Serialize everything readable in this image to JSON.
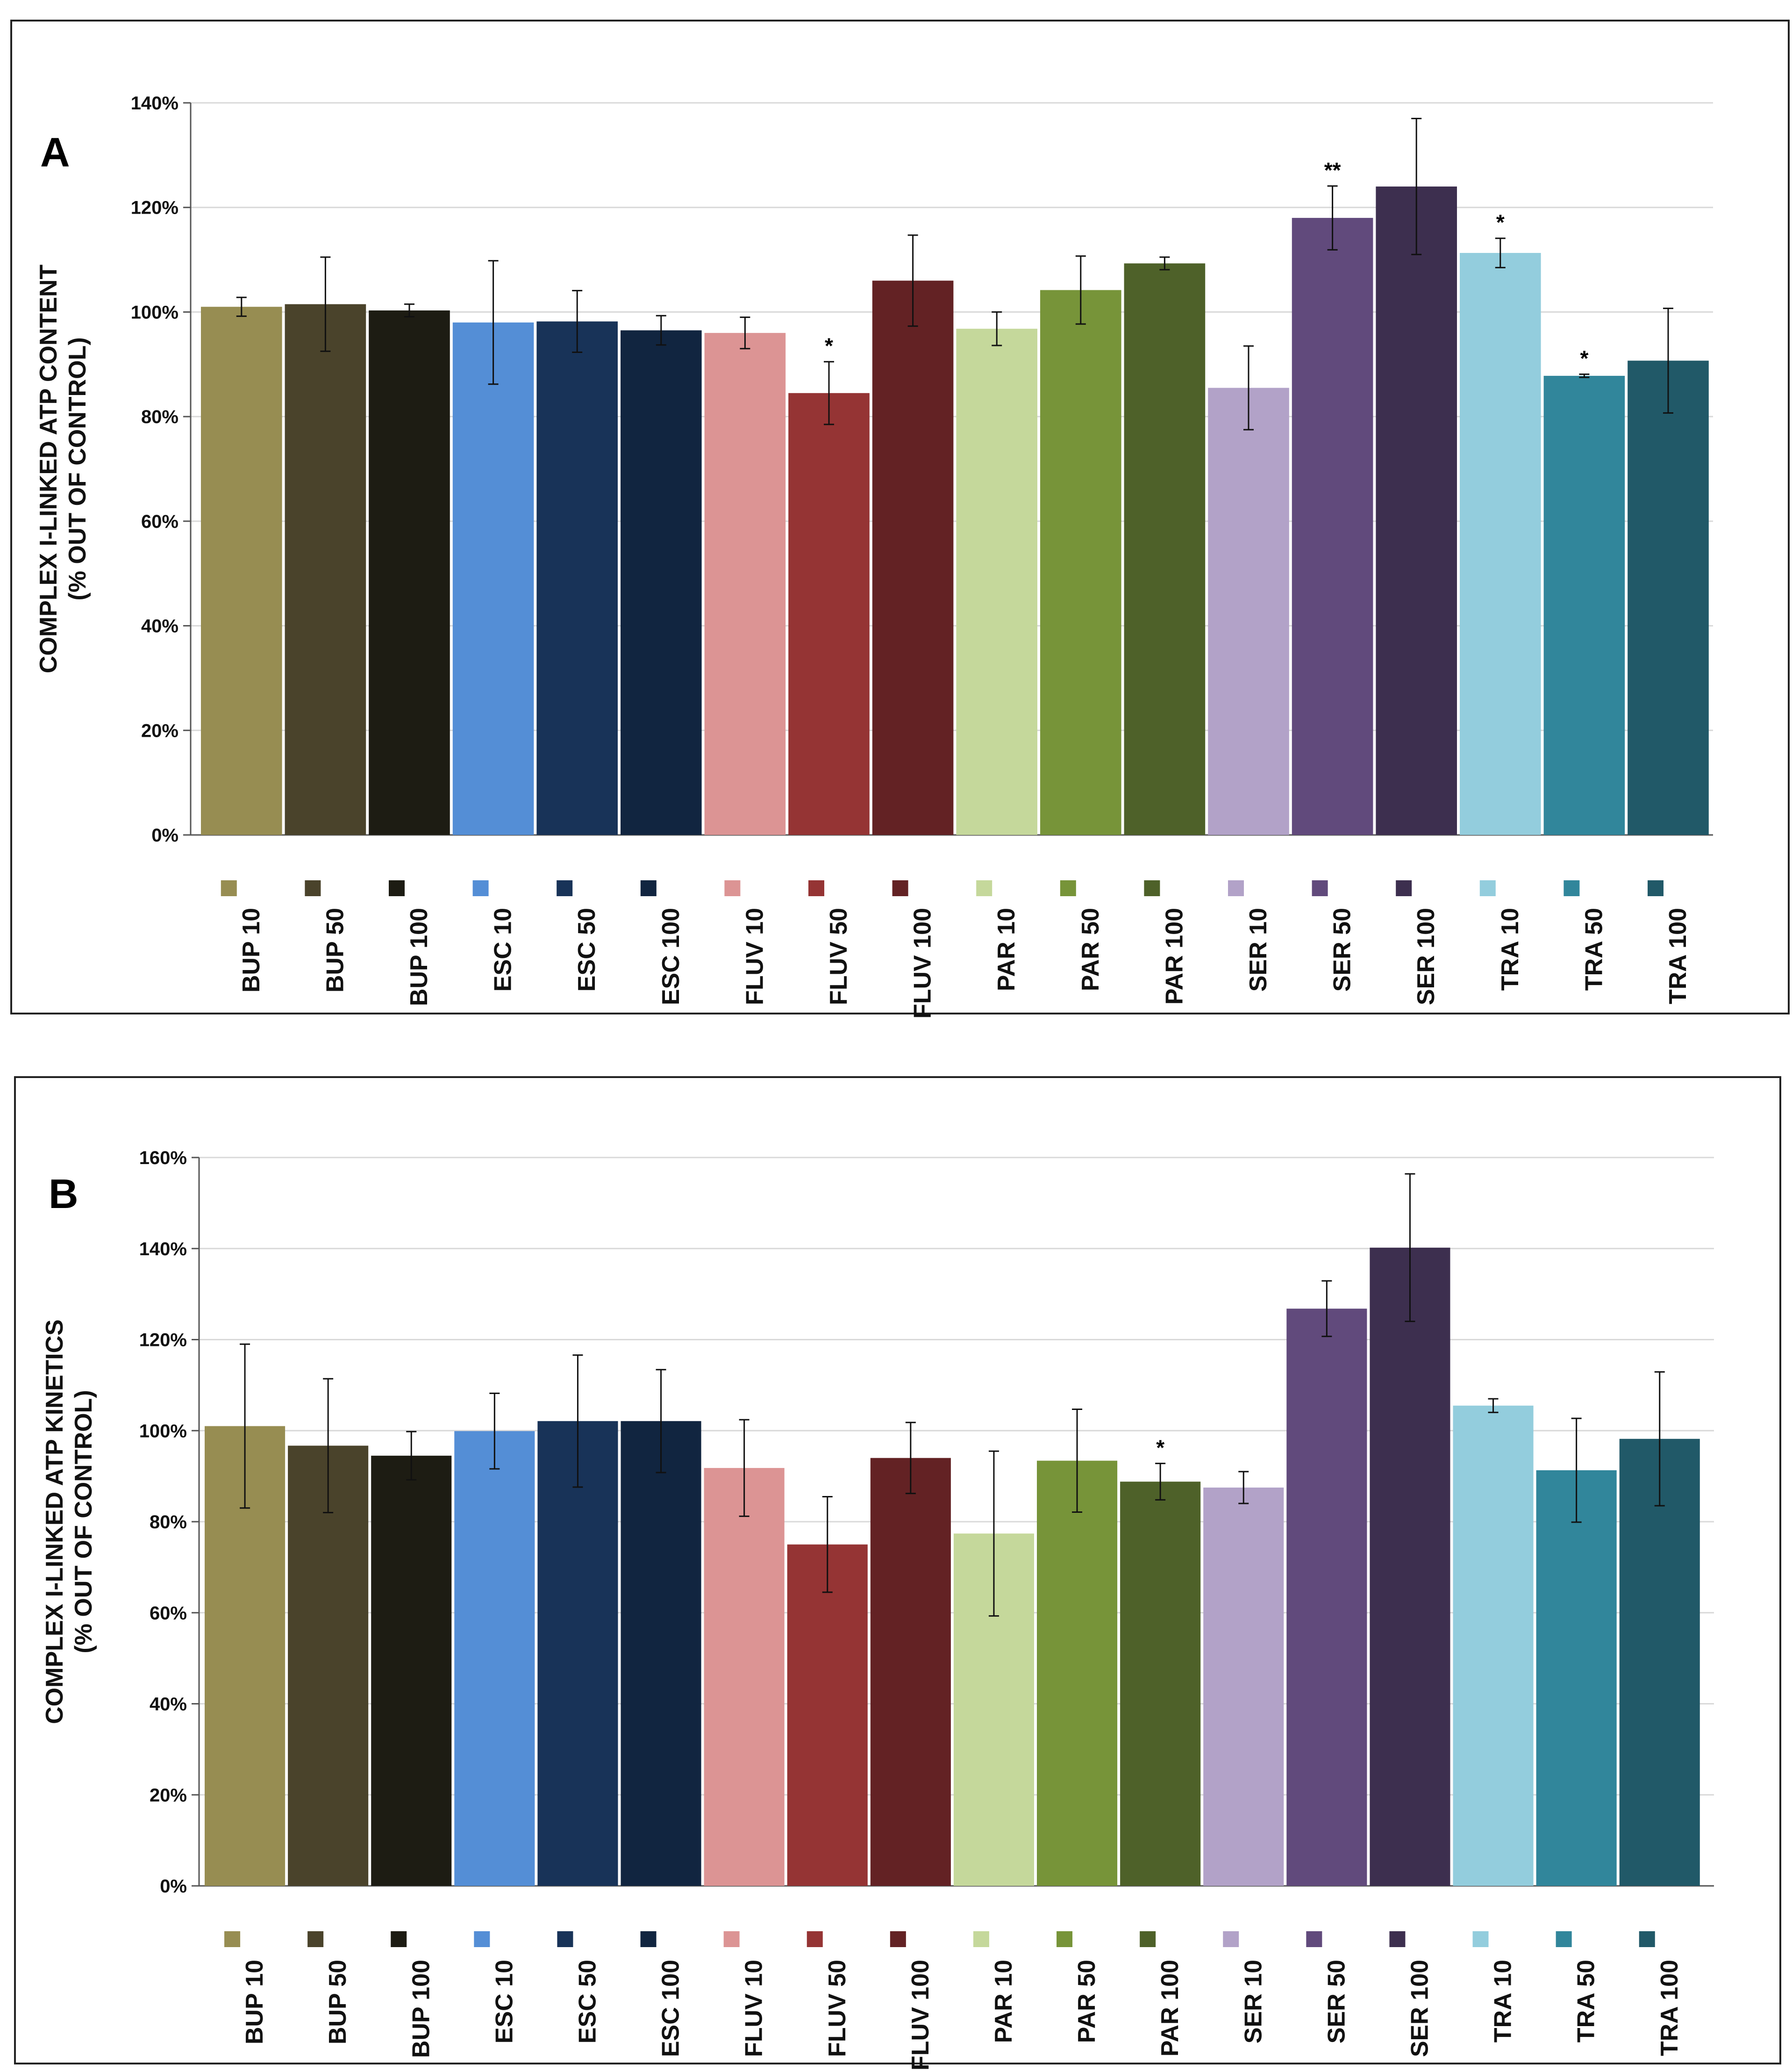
{
  "categories": [
    "BUP 10",
    "BUP 50",
    "BUP 100",
    "ESC 10",
    "ESC 50",
    "ESC 100",
    "FLUV 10",
    "FLUV 50",
    "FLUV 100",
    "PAR 10",
    "PAR 50",
    "PAR 100",
    "SER 10",
    "SER 50",
    "SER 100",
    "TRA 10",
    "TRA 50",
    "TRA 100"
  ],
  "colors": [
    "#978d52",
    "#4a432b",
    "#1d1c13",
    "#548ed6",
    "#183358",
    "#112540",
    "#dc9494",
    "#953434",
    "#632224",
    "#c5d89b",
    "#779439",
    "#4e6129",
    "#b2a2c8",
    "#614a7c",
    "#3d2f4f",
    "#93cddd",
    "#31869b",
    "#215968"
  ],
  "chart_data": [
    {
      "type": "bar",
      "panel": "A",
      "ylabel_lines": [
        "COMPLEX I-LINKED ATP CONTENT",
        "(% OUT OF CONTROL)"
      ],
      "ylim": [
        0,
        140
      ],
      "yticks": [
        0,
        20,
        40,
        60,
        80,
        100,
        120,
        140
      ],
      "ytick_labels": [
        "0%",
        "20%",
        "40%",
        "60%",
        "80%",
        "100%",
        "120%",
        "140%"
      ],
      "grid": true,
      "legend_placement": "bottom",
      "values": [
        101,
        101.5,
        100.3,
        98,
        98.2,
        96.5,
        96,
        84.5,
        106,
        96.8,
        104.2,
        109.3,
        85.5,
        118,
        124,
        111.3,
        87.8,
        90.7
      ],
      "errors": [
        1.8,
        9,
        1.2,
        11.8,
        5.9,
        2.8,
        3,
        6,
        8.7,
        3.2,
        6.5,
        1.2,
        8,
        6.1,
        13,
        2.8,
        0.3,
        10
      ],
      "significance": [
        "",
        "",
        "",
        "",
        "",
        "",
        "",
        "*",
        "",
        "",
        "",
        "",
        "",
        "**",
        "",
        "*",
        "*",
        ""
      ]
    },
    {
      "type": "bar",
      "panel": "B",
      "ylabel_lines": [
        "COMPLEX I-LINKED ATP KINETICS",
        "(% OUT OF CONTROL)"
      ],
      "ylim": [
        0,
        160
      ],
      "yticks": [
        0,
        20,
        40,
        60,
        80,
        100,
        120,
        140,
        160
      ],
      "ytick_labels": [
        "0%",
        "20%",
        "40%",
        "60%",
        "80%",
        "100%",
        "120%",
        "140%",
        "160%"
      ],
      "grid": true,
      "legend_placement": "bottom",
      "values": [
        101,
        96.7,
        94.5,
        99.9,
        102.1,
        102.1,
        91.8,
        75,
        94,
        77.4,
        93.4,
        88.8,
        87.5,
        126.8,
        140.2,
        105.5,
        91.3,
        98.2
      ],
      "errors": [
        18,
        14.7,
        5.3,
        8.3,
        14.5,
        11.3,
        10.6,
        10.5,
        7.8,
        18.1,
        11.3,
        4,
        3.5,
        6.1,
        16.2,
        1.5,
        11.4,
        14.7
      ],
      "significance": [
        "",
        "",
        "",
        "",
        "",
        "",
        "",
        "",
        "",
        "",
        "",
        "*",
        "",
        "",
        "",
        "",
        "",
        ""
      ]
    }
  ]
}
